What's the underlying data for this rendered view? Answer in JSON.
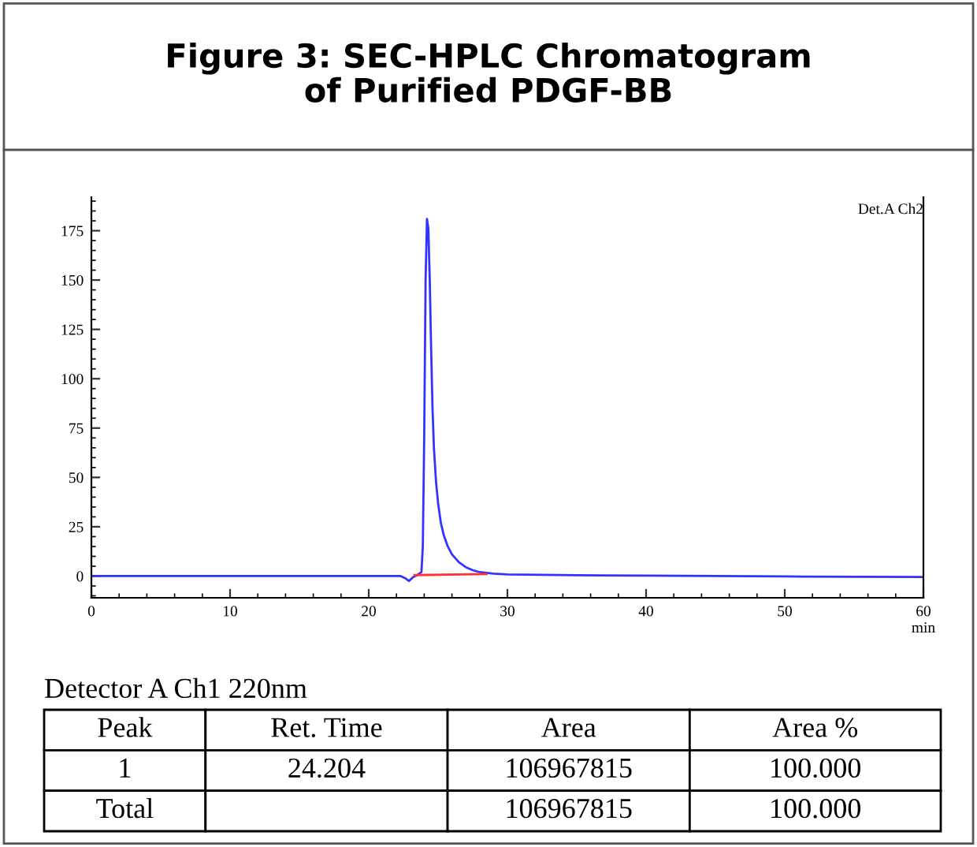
{
  "chart_data": {
    "type": "line",
    "title": "Figure 3: SEC-HPLC Chromatogram\nof Purified PDGF-BB",
    "xlabel": "min",
    "series": [
      {
        "color": "#3333ff",
        "x": [
          0,
          10,
          20,
          22.3,
          22.6,
          22.9,
          23.2,
          23.5,
          23.8,
          23.9,
          24.0,
          24.1,
          24.2,
          24.3,
          24.4,
          24.5,
          24.6,
          24.7,
          24.85,
          25.0,
          25.2,
          25.4,
          25.7,
          26.0,
          26.5,
          27.0,
          27.5,
          28.0,
          29.0,
          30,
          35,
          40,
          50,
          60
        ],
        "values": [
          0,
          0,
          0,
          0,
          -1,
          -2.5,
          -0.5,
          0.5,
          2,
          15,
          70,
          150,
          181,
          176,
          150,
          115,
          85,
          65,
          48,
          37,
          27,
          21,
          15,
          11,
          7,
          4.5,
          3,
          2,
          1.2,
          0.8,
          0.4,
          0.2,
          -0.2,
          -0.5
        ]
      },
      {
        "color": "#ff3333",
        "x": [
          23.3,
          28.5
        ],
        "values": [
          0.5,
          1
        ]
      }
    ],
    "xlim": [
      0,
      60
    ],
    "ylim": [
      -11,
      192
    ],
    "xticks": [
      0,
      10,
      20,
      30,
      40,
      50,
      60
    ],
    "yticks": [
      0,
      25,
      50,
      75,
      100,
      125,
      150,
      175
    ],
    "grid": false,
    "legend": false,
    "annotations": [
      "Det.A Ch2",
      "Detector A Ch1 220nm",
      "Peak",
      "Ret. Time",
      "Area",
      "Area %",
      "1",
      "24.204",
      "106967815",
      "100.000",
      "Total",
      null,
      "106967815",
      "100.000"
    ]
  }
}
